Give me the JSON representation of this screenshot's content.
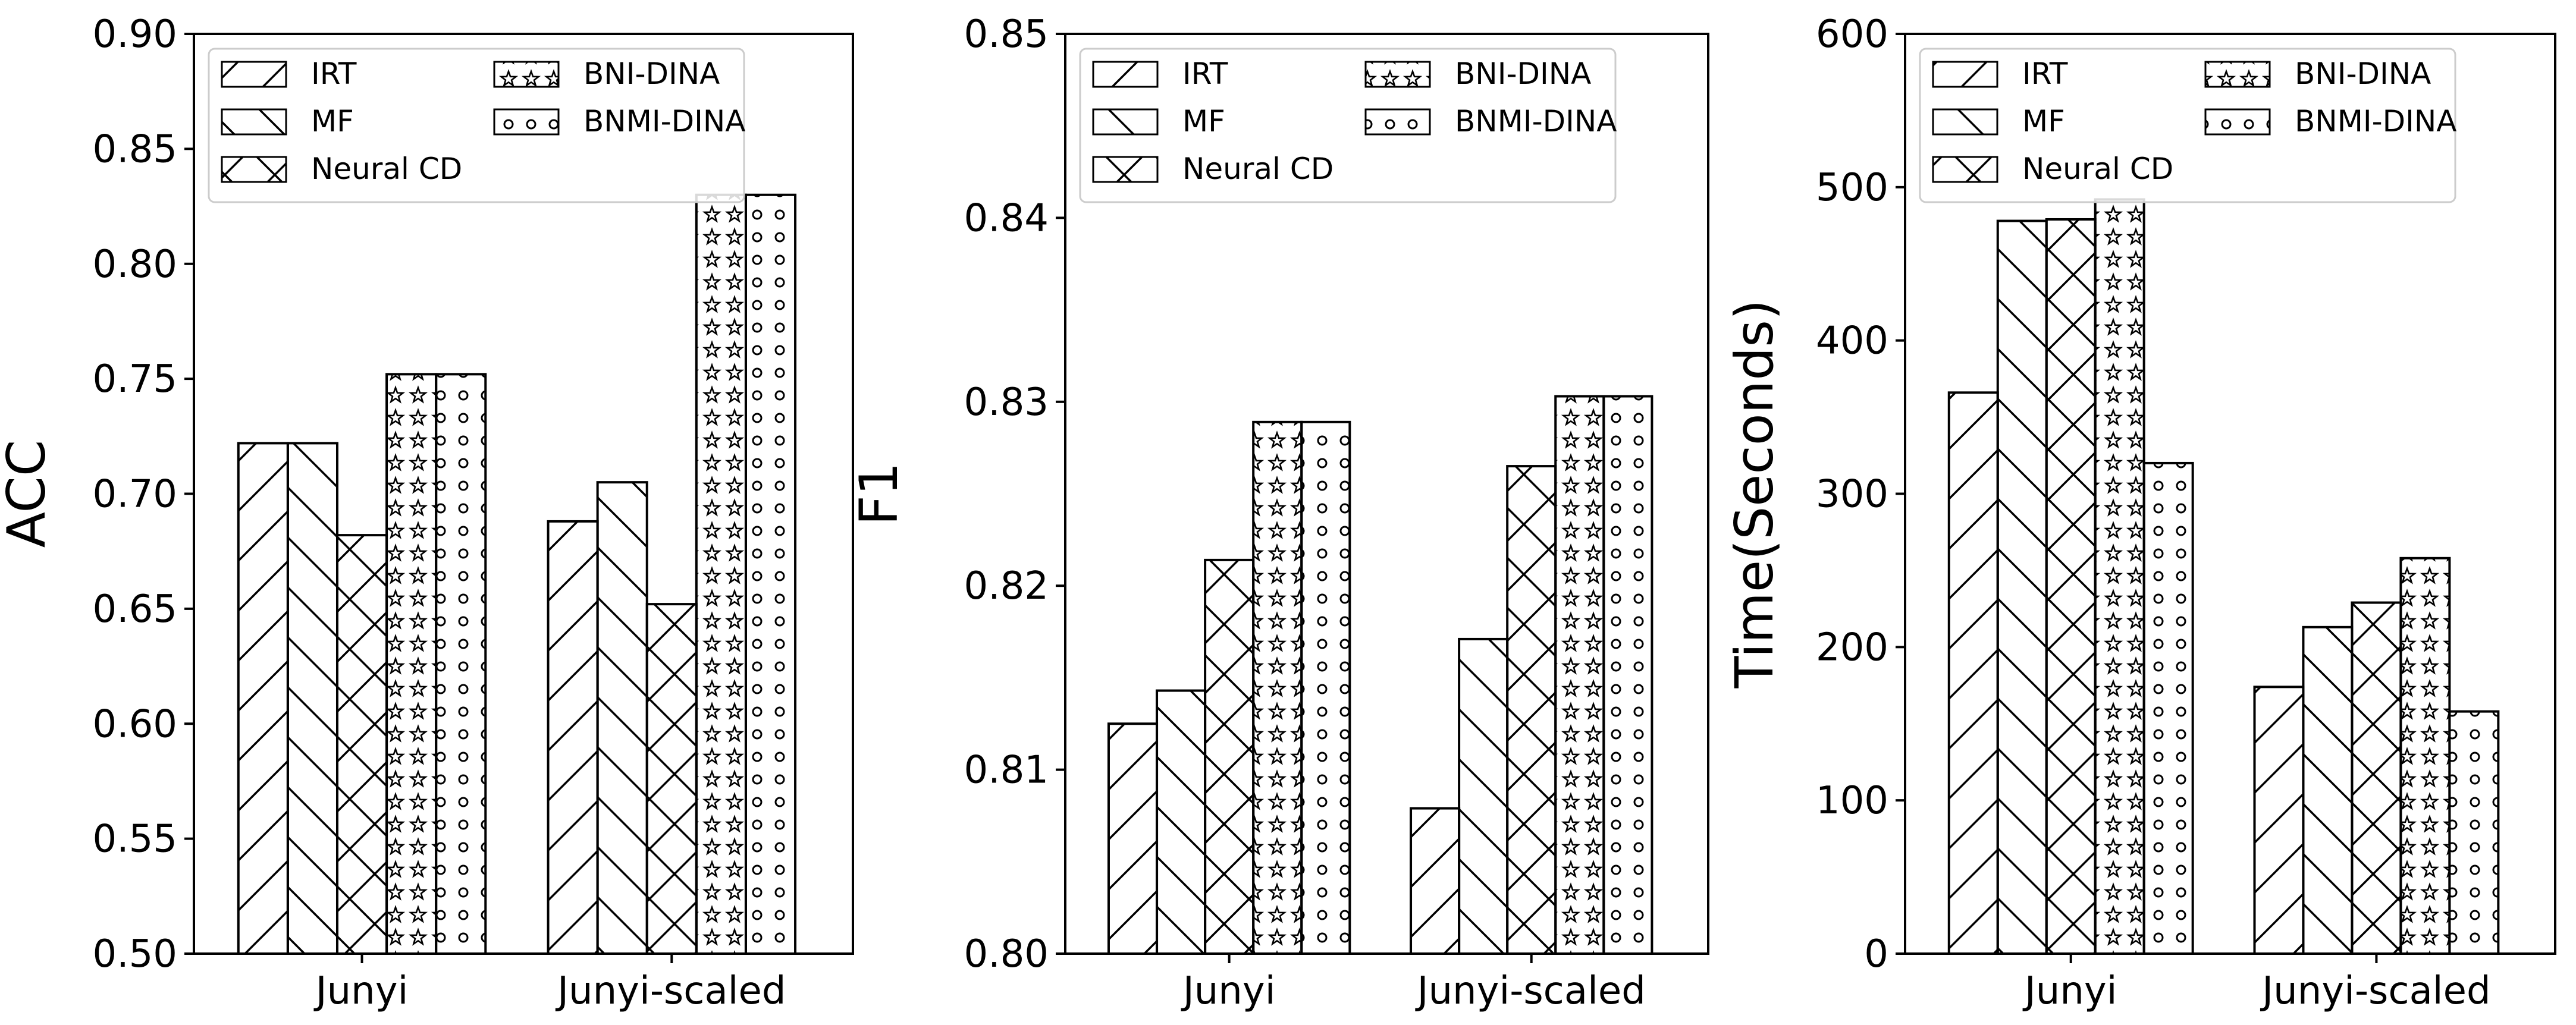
{
  "chart_data": [
    {
      "type": "bar",
      "categories": [
        "Junyi",
        "Junyi-scaled"
      ],
      "ylabel": "ACC",
      "xlabel": "",
      "ylim": [
        0.5,
        0.9
      ],
      "yticks": [
        "0.50",
        "0.55",
        "0.60",
        "0.65",
        "0.70",
        "0.75",
        "0.80",
        "0.85",
        "0.90"
      ],
      "series": [
        {
          "name": "IRT",
          "values": [
            0.722,
            0.688
          ]
        },
        {
          "name": "MF",
          "values": [
            0.722,
            0.705
          ]
        },
        {
          "name": "Neural CD",
          "values": [
            0.682,
            0.652
          ]
        },
        {
          "name": "BNI-DINA",
          "values": [
            0.752,
            0.83
          ]
        },
        {
          "name": "BNMI-DINA",
          "values": [
            0.752,
            0.83
          ]
        }
      ]
    },
    {
      "type": "bar",
      "categories": [
        "Junyi",
        "Junyi-scaled"
      ],
      "ylabel": "F1",
      "xlabel": "",
      "ylim": [
        0.8,
        0.85
      ],
      "yticks": [
        "0.80",
        "0.81",
        "0.82",
        "0.83",
        "0.84",
        "0.85"
      ],
      "series": [
        {
          "name": "IRT",
          "values": [
            0.8125,
            0.8079
          ]
        },
        {
          "name": "MF",
          "values": [
            0.8143,
            0.8171
          ]
        },
        {
          "name": "Neural CD",
          "values": [
            0.8214,
            0.8265
          ]
        },
        {
          "name": "BNI-DINA",
          "values": [
            0.8289,
            0.8303
          ]
        },
        {
          "name": "BNMI-DINA",
          "values": [
            0.8289,
            0.8303
          ]
        }
      ]
    },
    {
      "type": "bar",
      "categories": [
        "Junyi",
        "Junyi-scaled"
      ],
      "ylabel": "Time(Seconds)",
      "xlabel": "",
      "ylim": [
        0,
        600
      ],
      "yticks": [
        "0",
        "100",
        "200",
        "300",
        "400",
        "500",
        "600"
      ],
      "series": [
        {
          "name": "IRT",
          "values": [
            366,
            174
          ]
        },
        {
          "name": "MF",
          "values": [
            478,
            213
          ]
        },
        {
          "name": "Neural CD",
          "values": [
            479,
            229
          ]
        },
        {
          "name": "BNI-DINA",
          "values": [
            492,
            258
          ]
        },
        {
          "name": "BNMI-DINA",
          "values": [
            320,
            158
          ]
        }
      ]
    }
  ],
  "legend_order": [
    "IRT",
    "MF",
    "Neural CD",
    "BNI-DINA",
    "BNMI-DINA"
  ],
  "patterns": [
    "hatch-forward",
    "hatch-back",
    "hatch-cross",
    "stars",
    "circles"
  ],
  "colors": {
    "edge": "#000000",
    "fill": "#ffffff",
    "legend_border": "#cccccc"
  }
}
